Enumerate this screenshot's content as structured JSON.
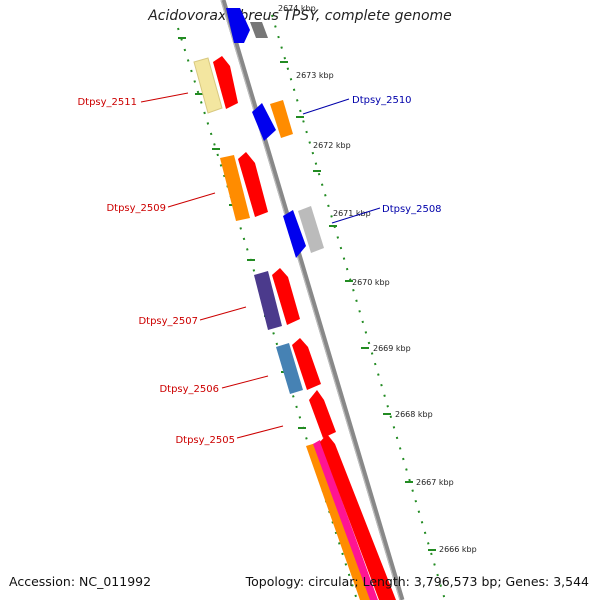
{
  "title": "Acidovorax ebreus TPSY, complete genome",
  "footer": {
    "accession": "Accession: NC_011992",
    "summary": "Topology: circular; Length: 3,796,573 bp; Genes: 3,544"
  },
  "ticks": [
    "2674 kbp",
    "2673 kbp",
    "2672 kbp",
    "2671 kbp",
    "2670 kbp",
    "2669 kbp",
    "2668 kbp",
    "2667 kbp",
    "2666 kbp"
  ],
  "gene_labels": [
    {
      "text": "Dtpsy_2511",
      "color": "#cc0000"
    },
    {
      "text": "Dtpsy_2510",
      "color": "#0000aa"
    },
    {
      "text": "Dtpsy_2509",
      "color": "#cc0000"
    },
    {
      "text": "Dtpsy_2508",
      "color": "#0000aa"
    },
    {
      "text": "Dtpsy_2507",
      "color": "#cc0000"
    },
    {
      "text": "Dtpsy_2506",
      "color": "#cc0000"
    },
    {
      "text": "Dtpsy_2505",
      "color": "#cc0000"
    }
  ],
  "colors": {
    "red": "#ff0000",
    "blue": "#0000ee",
    "orange": "#ff8c00",
    "grey": "#bbbbbb",
    "yellow": "#f3e6a0",
    "purple": "#4b3a8c",
    "steelblue": "#4682b4",
    "magenta": "#ff1493",
    "backbone": "#888888",
    "ruler": "#228b22"
  }
}
